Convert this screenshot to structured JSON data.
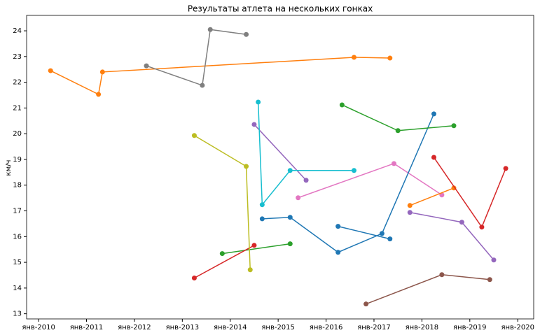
{
  "chart_data": {
    "type": "line",
    "title": "Результаты атлета на нескольких гонках",
    "ylabel": "км/ч",
    "xlim": [
      "2009-10",
      "2020-05"
    ],
    "ylim": [
      12.8,
      24.6
    ],
    "xticks": [
      {
        "value": "2010-01",
        "label": "янв-2010"
      },
      {
        "value": "2011-01",
        "label": "янв-2011"
      },
      {
        "value": "2012-01",
        "label": "янв-2012"
      },
      {
        "value": "2013-01",
        "label": "янв-2013"
      },
      {
        "value": "2014-01",
        "label": "янв-2014"
      },
      {
        "value": "2015-01",
        "label": "янв-2015"
      },
      {
        "value": "2016-01",
        "label": "янв-2016"
      },
      {
        "value": "2017-01",
        "label": "янв-2017"
      },
      {
        "value": "2018-01",
        "label": "янв-2018"
      },
      {
        "value": "2019-01",
        "label": "янв-2019"
      },
      {
        "value": "2020-01",
        "label": "янв-2020"
      }
    ],
    "yticks": [
      13,
      14,
      15,
      16,
      17,
      18,
      19,
      20,
      21,
      22,
      23,
      24
    ],
    "series": [
      {
        "color": "#ff7f0e",
        "x": [
          "2010-04",
          "2011-04",
          "2011-05",
          "2016-08",
          "2017-05"
        ],
        "values": [
          22.45,
          21.53,
          22.4,
          22.97,
          22.94
        ]
      },
      {
        "color": "#2ca02c",
        "x": [
          "2013-11",
          "2015-04"
        ],
        "values": [
          15.34,
          15.72
        ]
      },
      {
        "color": "#d62728",
        "x": [
          "2013-04",
          "2014-07"
        ],
        "values": [
          14.39,
          15.66
        ]
      },
      {
        "color": "#9467bd",
        "x": [
          "2014-07",
          "2015-08"
        ],
        "values": [
          20.36,
          18.19
        ]
      },
      {
        "color": "#8c564b",
        "x": [
          "2016-11",
          "2018-06",
          "2019-06"
        ],
        "values": [
          13.38,
          14.52,
          14.33
        ]
      },
      {
        "color": "#e377c2",
        "x": [
          "2015-06",
          "2017-06",
          "2018-06"
        ],
        "values": [
          17.51,
          18.84,
          17.62
        ]
      },
      {
        "color": "#7f7f7f",
        "x": [
          "2012-04",
          "2013-06",
          "2013-08",
          "2014-05"
        ],
        "values": [
          22.64,
          21.88,
          24.05,
          23.86
        ]
      },
      {
        "color": "#bcbd22",
        "x": [
          "2013-04",
          "2014-05",
          "2014-06"
        ],
        "values": [
          19.93,
          18.73,
          14.71
        ]
      },
      {
        "color": "#17becf",
        "x": [
          "2014-08",
          "2014-09",
          "2015-04",
          "2016-08"
        ],
        "values": [
          21.23,
          17.24,
          18.57,
          18.57
        ]
      },
      {
        "color": "#1f77b4",
        "x": [
          "2014-09",
          "2015-04",
          "2016-04",
          "2017-03",
          "2018-04"
        ],
        "values": [
          16.69,
          16.75,
          15.39,
          16.12,
          20.77
        ]
      },
      {
        "color": "#1f77b4",
        "x": [
          "2016-04",
          "2017-05"
        ],
        "values": [
          16.4,
          15.91
        ]
      },
      {
        "color": "#ff7f0e",
        "x": [
          "2017-10",
          "2018-09"
        ],
        "values": [
          17.21,
          17.89
        ]
      },
      {
        "color": "#2ca02c",
        "x": [
          "2016-05",
          "2017-07",
          "2018-09"
        ],
        "values": [
          21.12,
          20.12,
          20.31
        ]
      },
      {
        "color": "#d62728",
        "x": [
          "2018-04",
          "2019-04",
          "2019-10"
        ],
        "values": [
          19.08,
          16.37,
          18.65
        ]
      },
      {
        "color": "#9467bd",
        "x": [
          "2017-10",
          "2018-11",
          "2019-07"
        ],
        "values": [
          16.94,
          16.56,
          15.09
        ]
      }
    ]
  }
}
